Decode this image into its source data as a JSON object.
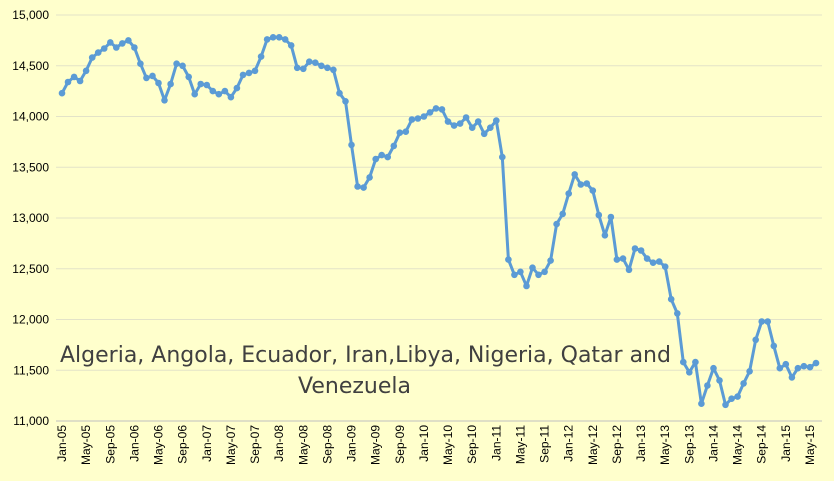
{
  "chart_data": {
    "type": "line",
    "title": "",
    "xlabel": "",
    "ylabel": "",
    "ylim": [
      11000,
      15000
    ],
    "y_ticks": [
      "11,000",
      "11,500",
      "12,000",
      "12,500",
      "13,000",
      "13,500",
      "14,000",
      "14,500",
      "15,000"
    ],
    "grid": "horizontal",
    "legend": "none",
    "annotation_lines": [
      "Algeria, Angola, Ecuador, Iran,Libya, Nigeria, Qatar and",
      "Venezuela"
    ],
    "series_color": "#5B9BD5",
    "x_tick_labels": [
      "Jan-05",
      "May-05",
      "Sep-05",
      "Jan-06",
      "May-06",
      "Sep-06",
      "Jan-07",
      "May-07",
      "Sep-07",
      "Jan-08",
      "May-08",
      "Sep-08",
      "Jan-09",
      "May-09",
      "Sep-09",
      "Jan-10",
      "May-10",
      "Sep-10",
      "Jan-11",
      "May-11",
      "Sep-11",
      "Jan-12",
      "May-12",
      "Sep-12",
      "Jan-13",
      "May-13",
      "Sep-13",
      "Jan-14",
      "May-14",
      "Sep-14",
      "Jan-15",
      "May-15"
    ],
    "x_tick_every": 4,
    "series": [
      {
        "values": [
          14230,
          14340,
          14390,
          14350,
          14450,
          14580,
          14630,
          14670,
          14730,
          14680,
          14720,
          14750,
          14680,
          14520,
          14380,
          14400,
          14330,
          14160,
          14320,
          14520,
          14500,
          14390,
          14220,
          14320,
          14310,
          14250,
          14220,
          14250,
          14190,
          14280,
          14410,
          14430,
          14450,
          14590,
          14760,
          14780,
          14780,
          14760,
          14700,
          14480,
          14470,
          14540,
          14530,
          14500,
          14480,
          14460,
          14230,
          14150,
          13720,
          13310,
          13300,
          13400,
          13580,
          13620,
          13600,
          13710,
          13840,
          13850,
          13970,
          13980,
          14000,
          14040,
          14080,
          14070,
          13950,
          13910,
          13930,
          13990,
          13890,
          13950,
          13830,
          13890,
          13960,
          13600,
          12590,
          12440,
          12470,
          12330,
          12510,
          12440,
          12470,
          12580,
          12940,
          13040,
          13240,
          13430,
          13330,
          13340,
          13270,
          13030,
          12830,
          13010,
          12590,
          12600,
          12490,
          12700,
          12680,
          12600,
          12560,
          12570,
          12520,
          12200,
          12060,
          11580,
          11480,
          11580,
          11170,
          11350,
          11520,
          11400,
          11160,
          11220,
          11240,
          11370,
          11490,
          11800,
          11980,
          11980,
          11740,
          11520,
          11560,
          11430,
          11520,
          11540,
          11530,
          11570
        ]
      }
    ]
  }
}
